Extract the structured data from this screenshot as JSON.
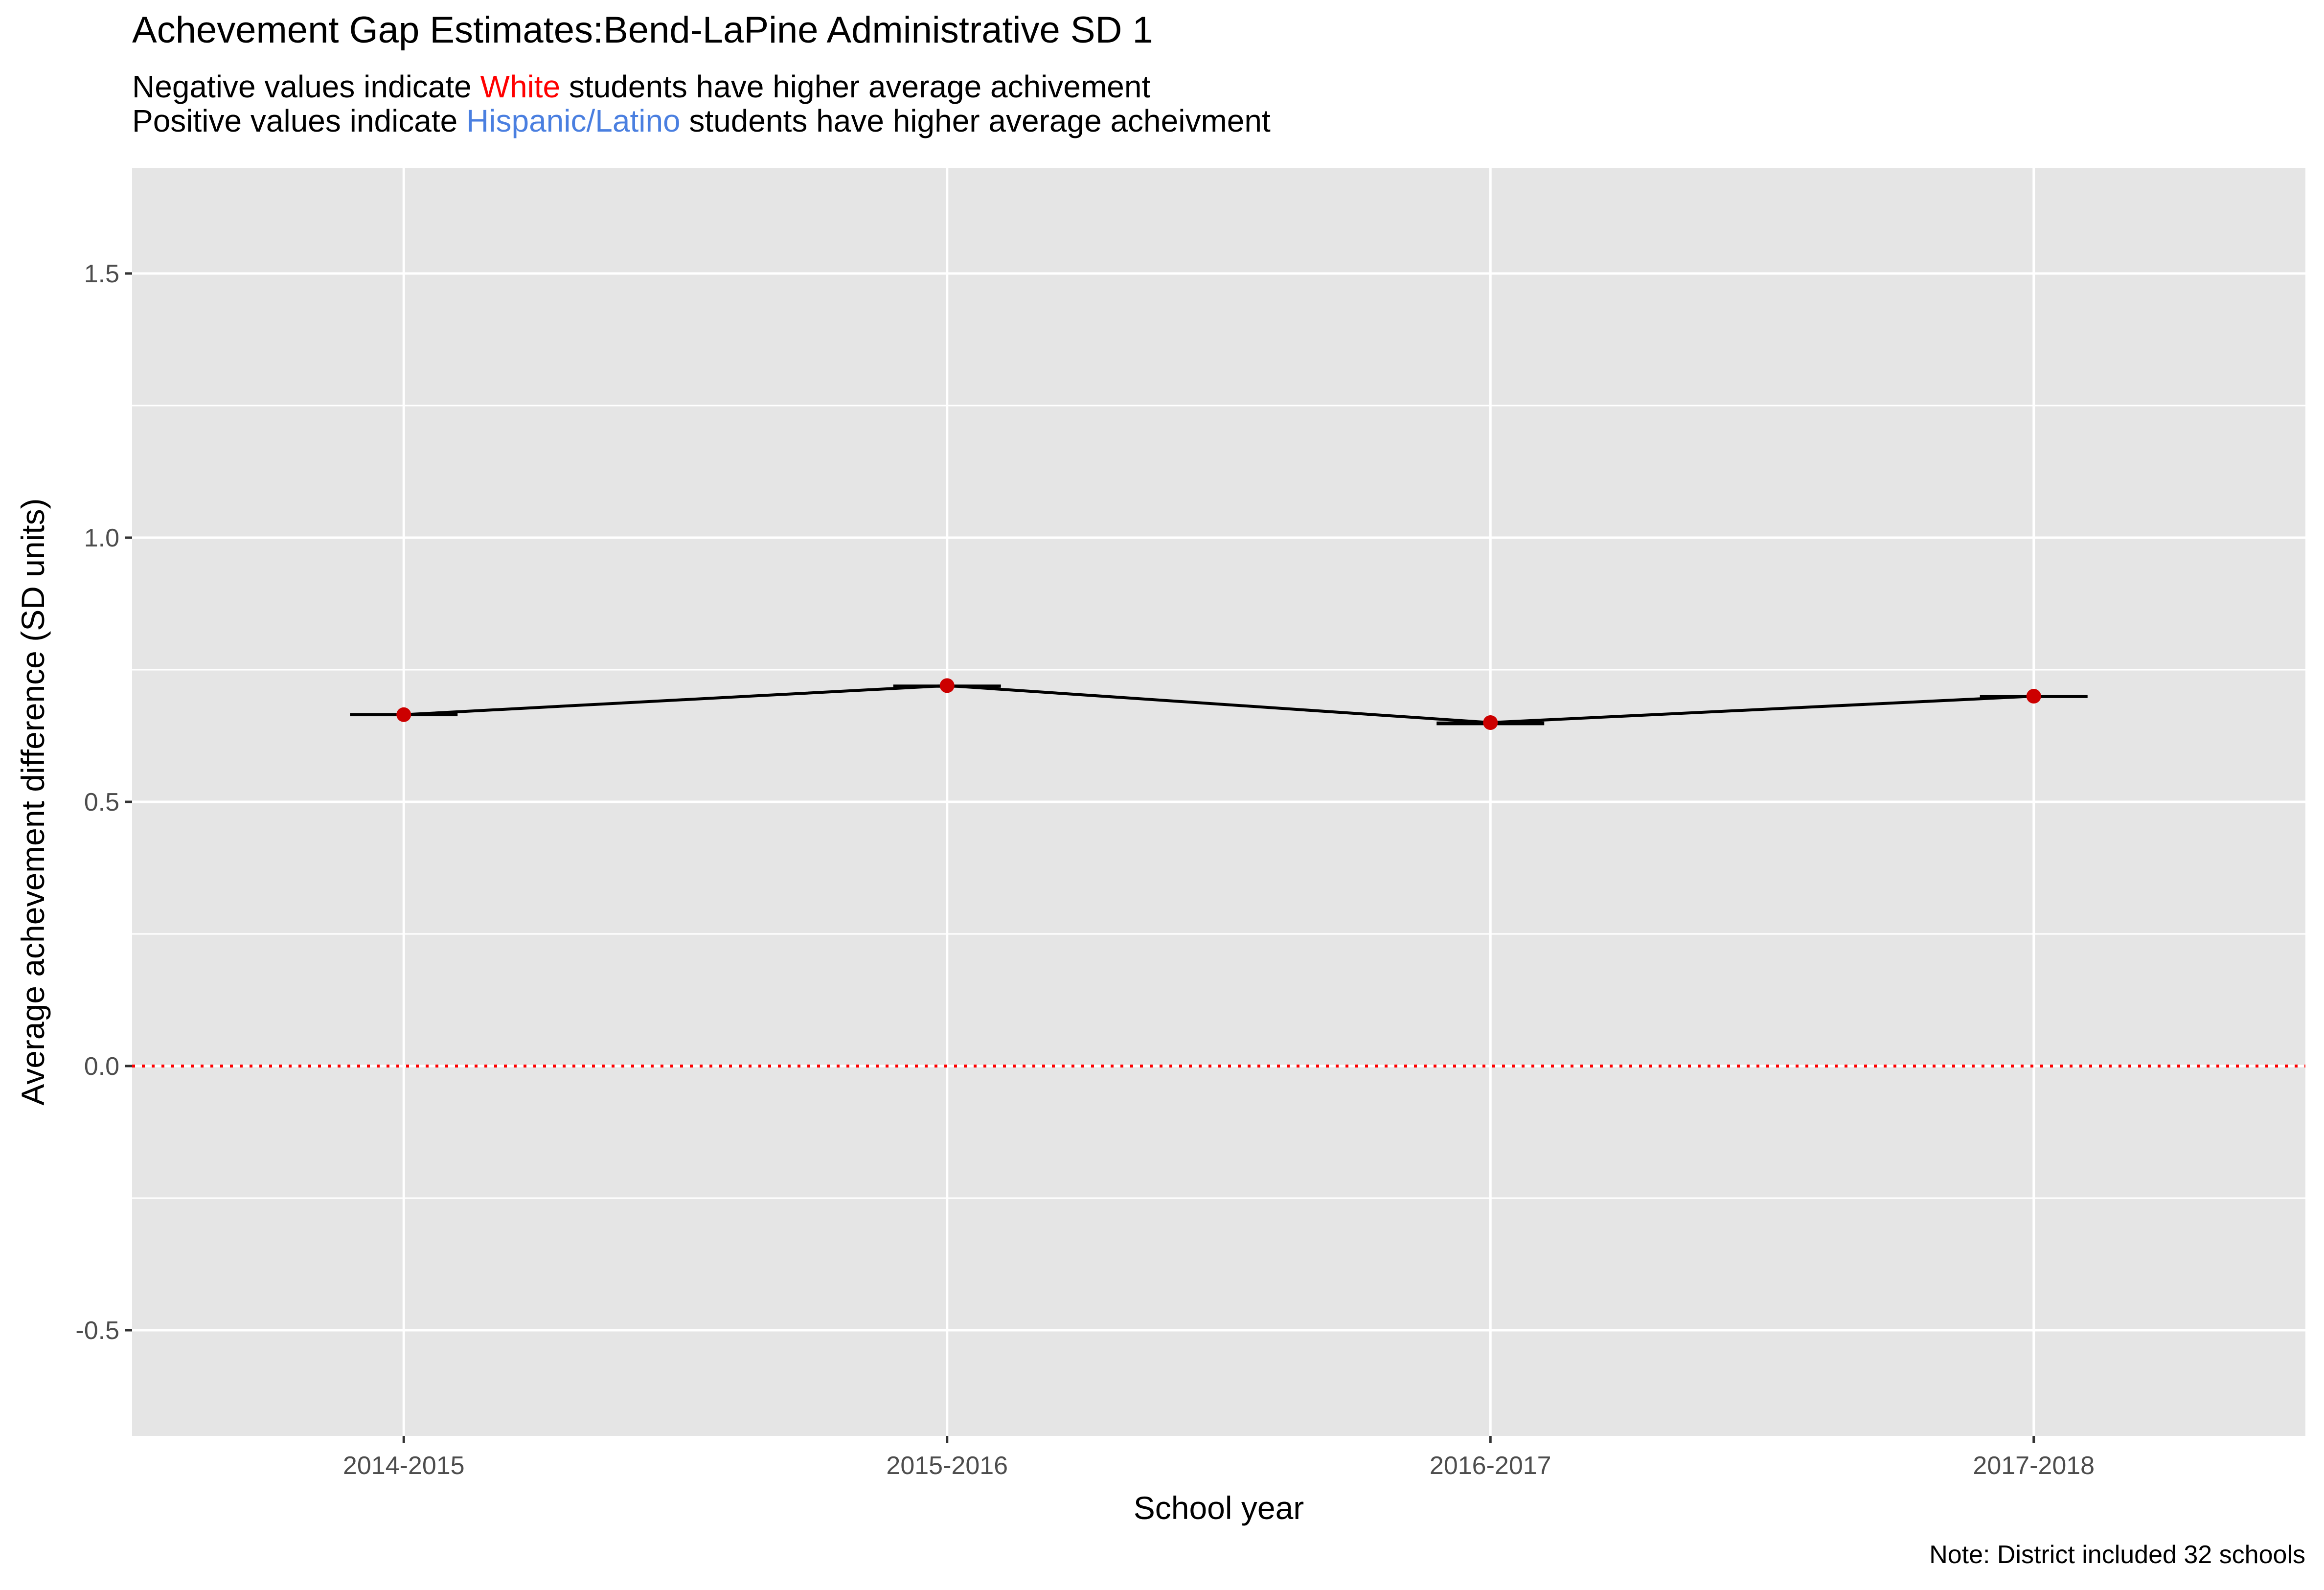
{
  "title": "Achevement Gap Estimates:Bend-LaPine Administrative SD 1",
  "subtitle": {
    "line1": {
      "before": "Negative values indicate ",
      "highlight": "White",
      "after": " students have higher average achivement",
      "highlight_color": "#ff0000"
    },
    "line2": {
      "before": "Positive values indicate ",
      "highlight": "Hispanic/Latino",
      "after": " students have higher average acheivment",
      "highlight_color": "#4a7fe0"
    }
  },
  "note": "Note: District included 32 schools",
  "chart_data": {
    "type": "line",
    "xlabel": "School year",
    "ylabel": "Average achevement difference (SD units)",
    "categories": [
      "2014-2015",
      "2015-2016",
      "2016-2017",
      "2017-2018"
    ],
    "series": [
      {
        "values": [
          0.665,
          0.72,
          0.65,
          0.7
        ],
        "error_low": [
          0.662,
          0.716,
          0.645,
          0.698
        ],
        "error_high": [
          0.668,
          0.722,
          0.652,
          0.702
        ],
        "line_color": "#000000",
        "point_color": "#cc0000"
      }
    ],
    "reference_line": {
      "y": 0,
      "style": "dotted",
      "color": "#ff0000"
    },
    "ylim": [
      -0.7,
      1.7
    ],
    "yticks": [
      -0.5,
      0.0,
      0.5,
      1.0,
      1.5
    ],
    "ytick_labels": [
      "-0.5",
      "0.0",
      "0.5",
      "1.0",
      "1.5"
    ],
    "grid": true,
    "panel_background": "#e5e5e5",
    "grid_color": "#ffffff"
  }
}
